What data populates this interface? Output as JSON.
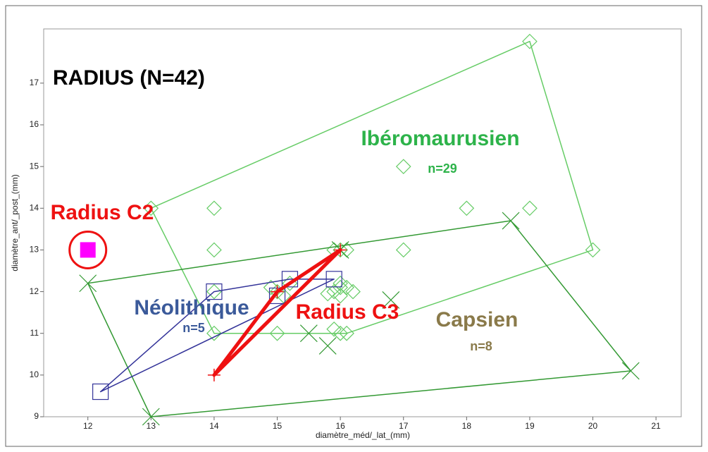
{
  "chart_data": {
    "type": "scatter",
    "title": "RADIUS (N=42)",
    "x_label": "diamètre_méd/_lat_(mm)",
    "y_label": "diamètre_ant/_post_(mm)",
    "xlim": [
      11.3,
      21.4
    ],
    "ylim": [
      9,
      18.3
    ],
    "xticks": [
      12,
      13,
      14,
      15,
      16,
      17,
      18,
      19,
      20,
      21
    ],
    "yticks": [
      9,
      10,
      11,
      12,
      13,
      14,
      15,
      16,
      17
    ],
    "series": [
      {
        "name": "Ibéromaurusien",
        "count": "n=29",
        "color": "#66cc66",
        "label_color": "#2db34a",
        "marker": "diamond",
        "line_width": 1.5,
        "x": [
          13,
          14,
          14,
          17,
          19,
          19,
          18,
          20,
          17,
          16,
          16.1,
          15.9,
          14,
          14,
          15,
          16,
          16.1,
          15.9,
          15,
          15.2,
          15.9,
          16,
          16.1,
          16,
          15.8,
          16.2,
          15.1,
          16,
          14.9
        ],
        "y": [
          14,
          14,
          13,
          15,
          18,
          14,
          14,
          13,
          13,
          13,
          13,
          13,
          12,
          11,
          11,
          11,
          11,
          11.1,
          12,
          12.2,
          12,
          12.1,
          12.1,
          11.9,
          11.95,
          12,
          11.9,
          12.2,
          12.1
        ]
      },
      {
        "name": "Capsien",
        "count": "n=8",
        "color": "#339933",
        "label_color": "#8a7a4a",
        "marker": "x",
        "line_width": 1.5,
        "x": [
          12,
          18.7,
          20.6,
          13,
          16,
          15.5,
          15.8,
          16.8
        ],
        "y": [
          12.2,
          13.7,
          10.1,
          9,
          13,
          11,
          10.7,
          11.8
        ]
      },
      {
        "name": "Néolithique",
        "count": "n=5",
        "color": "#333399",
        "label_color": "#3b5a9a",
        "marker": "square",
        "line_width": 1.5,
        "x": [
          12.2,
          14,
          15.2,
          15.9,
          15
        ],
        "y": [
          9.6,
          12,
          12.3,
          12.3,
          11.9
        ]
      },
      {
        "name": "Radius C3",
        "color": "#ee1111",
        "label_color": "#ee1111",
        "marker": "plus",
        "line_width": 5,
        "x": [
          14,
          15,
          16
        ],
        "y": [
          10,
          12,
          13
        ]
      },
      {
        "name": "Radius C2",
        "color": "#ff00ff",
        "label_color": "#ee1111",
        "marker": "filled-circled",
        "line_width": 1.5,
        "x": [
          12
        ],
        "y": [
          13
        ]
      }
    ]
  }
}
